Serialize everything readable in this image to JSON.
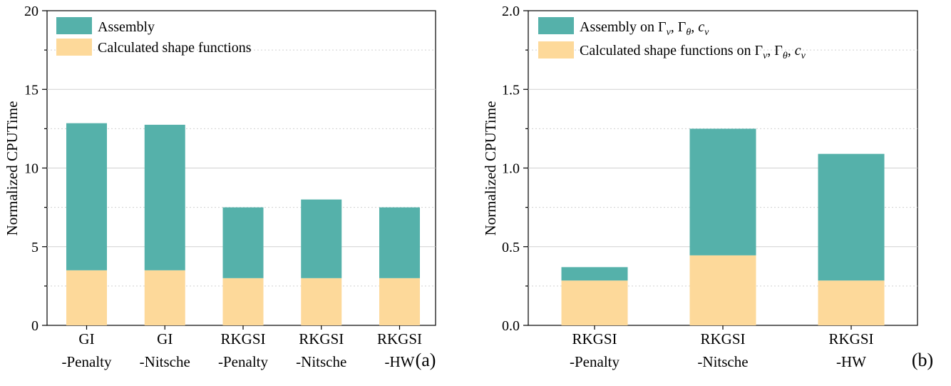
{
  "colors": {
    "assembly": "#55b1aa",
    "shape": "#fdd99a",
    "grid": "#d0d0d0"
  },
  "chart_data": [
    {
      "type": "bar",
      "stacked": true,
      "panel_label": "(a)",
      "ylabel": "Normalized CPUTime",
      "ylim": [
        0,
        20
      ],
      "yticks": [
        "0",
        "5",
        "10",
        "15",
        "20"
      ],
      "categories": [
        [
          "GI",
          "-Penalty"
        ],
        [
          "GI",
          "-Nitsche"
        ],
        [
          "RKGSI",
          "-Penalty"
        ],
        [
          "RKGSI",
          "-Nitsche"
        ],
        [
          "RKGSI",
          "-HW"
        ]
      ],
      "series": [
        {
          "name": "Calculated shape functions",
          "values": [
            3.5,
            3.5,
            3.0,
            3.0,
            3.0
          ]
        },
        {
          "name": "Assembly",
          "values": [
            9.35,
            9.25,
            4.5,
            5.0,
            4.5
          ]
        }
      ],
      "legend_position": "top-left",
      "grid": true
    },
    {
      "type": "bar",
      "stacked": true,
      "panel_label": "(b)",
      "ylabel": "Normalized CPUTime",
      "ylim": [
        0,
        2.0
      ],
      "yticks": [
        "0.0",
        "0.5",
        "1.0",
        "1.5",
        "2.0"
      ],
      "categories": [
        [
          "RKGSI",
          "-Penalty"
        ],
        [
          "RKGSI",
          "-Nitsche"
        ],
        [
          "RKGSI",
          "-HW"
        ]
      ],
      "series": [
        {
          "name": "Calculated shape functions on Γv, Γθ, cv",
          "values": [
            0.285,
            0.445,
            0.285
          ]
        },
        {
          "name": "Assembly on Γv, Γθ, cv",
          "values": [
            0.085,
            0.805,
            0.805
          ]
        }
      ],
      "legend_position": "top-left",
      "grid": true
    }
  ]
}
